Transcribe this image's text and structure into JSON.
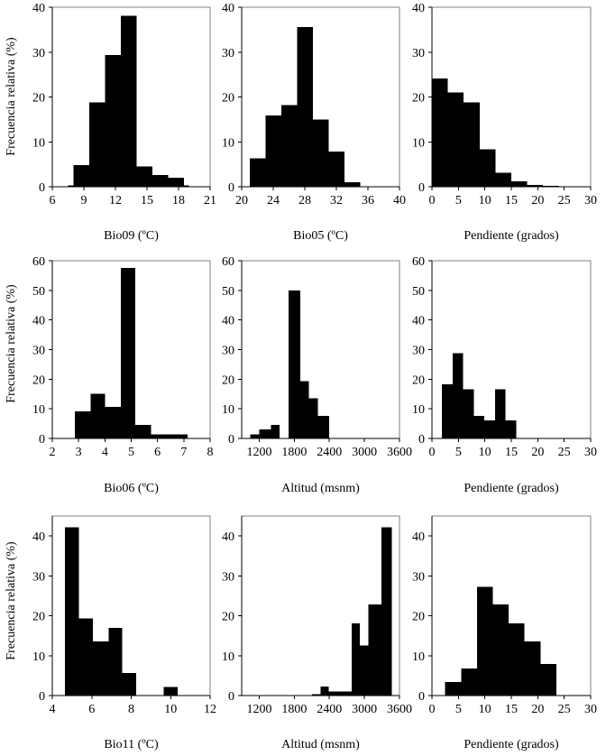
{
  "ylabel": "Frecuencia relativa (%)",
  "chart_data": [
    {
      "type": "bar",
      "xlabel": "Bio09 (ºC)",
      "xlim": [
        6,
        21
      ],
      "xticks": [
        "6",
        "9",
        "12",
        "15",
        "18",
        "21"
      ],
      "ylim": [
        0,
        40
      ],
      "yticks": [
        "0",
        "10",
        "20",
        "30",
        "40"
      ],
      "bins": [
        {
          "x0": 7.5,
          "x1": 8.0,
          "value": 0.3
        },
        {
          "x0": 8.0,
          "x1": 9.5,
          "value": 4.8
        },
        {
          "x0": 9.5,
          "x1": 11.0,
          "value": 18.8
        },
        {
          "x0": 11.0,
          "x1": 12.5,
          "value": 29.3
        },
        {
          "x0": 12.5,
          "x1": 14.0,
          "value": 38.1
        },
        {
          "x0": 14.0,
          "x1": 15.5,
          "value": 4.5
        },
        {
          "x0": 15.5,
          "x1": 17.0,
          "value": 2.6
        },
        {
          "x0": 17.0,
          "x1": 18.5,
          "value": 2.0
        },
        {
          "x0": 18.5,
          "x1": 19.0,
          "value": 0.3
        }
      ]
    },
    {
      "type": "bar",
      "xlabel": "Bio05 (ºC)",
      "xlim": [
        20,
        40
      ],
      "xticks": [
        "20",
        "24",
        "28",
        "32",
        "36",
        "40"
      ],
      "ylim": [
        0,
        40
      ],
      "yticks": [
        "0",
        "10",
        "20",
        "30",
        "40"
      ],
      "bins": [
        {
          "x0": 21,
          "x1": 23,
          "value": 6.3
        },
        {
          "x0": 23,
          "x1": 25,
          "value": 15.9
        },
        {
          "x0": 25,
          "x1": 27,
          "value": 18.2
        },
        {
          "x0": 27,
          "x1": 29,
          "value": 35.6
        },
        {
          "x0": 29,
          "x1": 31,
          "value": 15.0
        },
        {
          "x0": 31,
          "x1": 33,
          "value": 7.8
        },
        {
          "x0": 33,
          "x1": 35,
          "value": 1.0
        }
      ]
    },
    {
      "type": "bar",
      "xlabel": "Pendiente (grados)",
      "xlim": [
        0,
        30
      ],
      "xticks": [
        "0",
        "5",
        "10",
        "15",
        "20",
        "25",
        "30"
      ],
      "ylim": [
        0,
        40
      ],
      "yticks": [
        "0",
        "10",
        "20",
        "30",
        "40"
      ],
      "bins": [
        {
          "x0": 0,
          "x1": 3,
          "value": 24.1
        },
        {
          "x0": 3,
          "x1": 6,
          "value": 21.0
        },
        {
          "x0": 6,
          "x1": 9,
          "value": 18.8
        },
        {
          "x0": 9,
          "x1": 12,
          "value": 8.3
        },
        {
          "x0": 12,
          "x1": 15,
          "value": 3.1
        },
        {
          "x0": 15,
          "x1": 18,
          "value": 1.2
        },
        {
          "x0": 18,
          "x1": 21,
          "value": 0.4
        },
        {
          "x0": 21,
          "x1": 24,
          "value": 0.2
        }
      ]
    },
    {
      "type": "bar",
      "xlabel": "Bio06  (ºC)",
      "xlim": [
        2,
        8
      ],
      "xticks": [
        "2",
        "3",
        "4",
        "5",
        "6",
        "7",
        "8"
      ],
      "ylim": [
        0,
        60
      ],
      "yticks": [
        "0",
        "10",
        "20",
        "30",
        "40",
        "50",
        "60"
      ],
      "bins": [
        {
          "x0": 2.85,
          "x1": 3.45,
          "value": 9.2
        },
        {
          "x0": 3.45,
          "x1": 4.0,
          "value": 15.1
        },
        {
          "x0": 4.0,
          "x1": 4.6,
          "value": 10.6
        },
        {
          "x0": 4.6,
          "x1": 5.15,
          "value": 57.6
        },
        {
          "x0": 5.15,
          "x1": 5.75,
          "value": 4.5
        },
        {
          "x0": 5.75,
          "x1": 6.3,
          "value": 1.4
        },
        {
          "x0": 6.3,
          "x1": 7.15,
          "value": 1.4
        }
      ]
    },
    {
      "type": "bar",
      "xlabel": "Altitud (msnm)",
      "xlim": [
        900,
        3600
      ],
      "xticks": [
        "1200",
        "1800",
        "2400",
        "3000",
        "3600"
      ],
      "ylim": [
        0,
        60
      ],
      "yticks": [
        "0",
        "10",
        "20",
        "30",
        "40",
        "50",
        "60"
      ],
      "bins": [
        {
          "x0": 1050,
          "x1": 1200,
          "value": 1.4
        },
        {
          "x0": 1200,
          "x1": 1400,
          "value": 3.0
        },
        {
          "x0": 1400,
          "x1": 1550,
          "value": 4.6
        },
        {
          "x0": 1550,
          "x1": 1700,
          "value": 0.0
        },
        {
          "x0": 1700,
          "x1": 1900,
          "value": 50.0
        },
        {
          "x0": 1900,
          "x1": 2050,
          "value": 19.4
        },
        {
          "x0": 2050,
          "x1": 2200,
          "value": 13.5
        },
        {
          "x0": 2200,
          "x1": 2400,
          "value": 7.6
        }
      ]
    },
    {
      "type": "bar",
      "xlabel": "Pendiente (grados)",
      "xlim": [
        0,
        30
      ],
      "xticks": [
        "0",
        "5",
        "10",
        "15",
        "20",
        "25",
        "30"
      ],
      "ylim": [
        0,
        60
      ],
      "yticks": [
        "0",
        "10",
        "20",
        "30",
        "40",
        "50",
        "60"
      ],
      "bins": [
        {
          "x0": 1.9,
          "x1": 3.9,
          "value": 18.2
        },
        {
          "x0": 3.9,
          "x1": 5.9,
          "value": 28.8
        },
        {
          "x0": 5.9,
          "x1": 7.9,
          "value": 16.6
        },
        {
          "x0": 7.9,
          "x1": 9.9,
          "value": 7.6
        },
        {
          "x0": 9.9,
          "x1": 11.9,
          "value": 6.1
        },
        {
          "x0": 11.9,
          "x1": 13.9,
          "value": 16.6
        },
        {
          "x0": 13.9,
          "x1": 15.9,
          "value": 6.1
        }
      ]
    },
    {
      "type": "bar",
      "xlabel": "Bio11 (ºC)",
      "xlim": [
        4,
        12
      ],
      "xticks": [
        "4",
        "6",
        "8",
        "10",
        "12"
      ],
      "ylim": [
        0,
        45
      ],
      "yticks": [
        "0",
        "10",
        "20",
        "30",
        "40"
      ],
      "bins": [
        {
          "x0": 4.65,
          "x1": 5.35,
          "value": 42.2
        },
        {
          "x0": 5.35,
          "x1": 6.05,
          "value": 19.3
        },
        {
          "x0": 6.05,
          "x1": 6.85,
          "value": 13.6
        },
        {
          "x0": 6.85,
          "x1": 7.55,
          "value": 17.0
        },
        {
          "x0": 7.55,
          "x1": 8.25,
          "value": 5.6
        },
        {
          "x0": 8.25,
          "x1": 9.65,
          "value": 0.0
        },
        {
          "x0": 9.65,
          "x1": 10.35,
          "value": 2.2
        }
      ]
    },
    {
      "type": "bar",
      "xlabel": "Altitud (msnm)",
      "xlim": [
        900,
        3600
      ],
      "xticks": [
        "1200",
        "1800",
        "2400",
        "3000",
        "3600"
      ],
      "ylim": [
        0,
        45
      ],
      "yticks": [
        "0",
        "10",
        "20",
        "30",
        "40"
      ],
      "bins": [
        {
          "x0": 2100,
          "x1": 2250,
          "value": 0.3
        },
        {
          "x0": 2250,
          "x1": 2390,
          "value": 2.3
        },
        {
          "x0": 2390,
          "x1": 2640,
          "value": 1.0
        },
        {
          "x0": 2640,
          "x1": 2780,
          "value": 1.0
        },
        {
          "x0": 2780,
          "x1": 2920,
          "value": 18.1
        },
        {
          "x0": 2920,
          "x1": 3070,
          "value": 12.5
        },
        {
          "x0": 3070,
          "x1": 3290,
          "value": 22.8
        },
        {
          "x0": 3290,
          "x1": 3470,
          "value": 42.2
        }
      ]
    },
    {
      "type": "bar",
      "xlabel": "Pendiente (grados)",
      "xlim": [
        0,
        30
      ],
      "xticks": [
        "0",
        "5",
        "10",
        "15",
        "20",
        "25",
        "30"
      ],
      "ylim": [
        0,
        45
      ],
      "yticks": [
        "0",
        "10",
        "20",
        "30",
        "40"
      ],
      "bins": [
        {
          "x0": 2.5,
          "x1": 5.5,
          "value": 3.4
        },
        {
          "x0": 5.5,
          "x1": 8.5,
          "value": 6.8
        },
        {
          "x0": 8.5,
          "x1": 11.5,
          "value": 27.2
        },
        {
          "x0": 11.5,
          "x1": 14.5,
          "value": 22.8
        },
        {
          "x0": 14.5,
          "x1": 17.5,
          "value": 18.1
        },
        {
          "x0": 17.5,
          "x1": 20.5,
          "value": 13.6
        },
        {
          "x0": 20.5,
          "x1": 23.5,
          "value": 7.9
        }
      ]
    }
  ]
}
